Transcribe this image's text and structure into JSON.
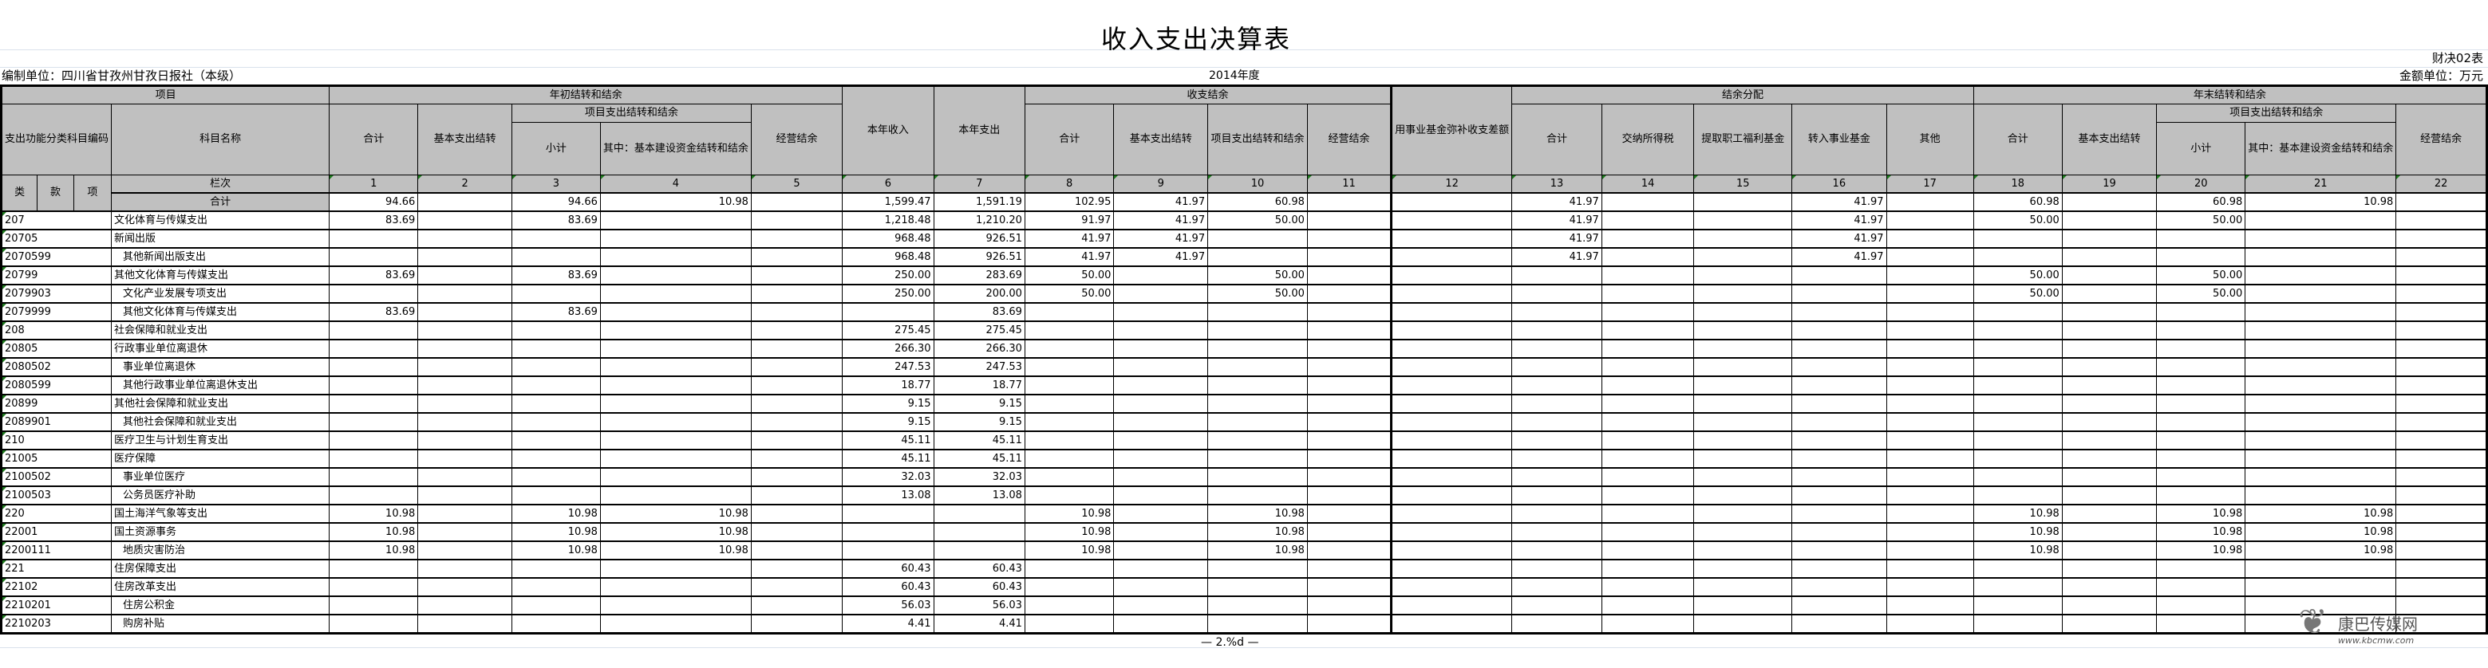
{
  "title": "收入支出决算表",
  "form_no": "财决02表",
  "unit": "编制单位：四川省甘孜州甘孜日报社（本级）",
  "year": "2014年度",
  "amount_unit": "金额单位：万元",
  "header": {
    "item": "项目",
    "begin_balance": "年初结转和结余",
    "income": "本年收入",
    "expense": "本年支出",
    "surplus": "收支结余",
    "fund_cover": "用事业基金弥补收支差额",
    "distribution": "结余分配",
    "end_balance": "年末结转和结余",
    "func_code": "支出功能分类科目编码",
    "subject_name": "科目名称",
    "total": "合计",
    "basic": "基本支出结转",
    "project": "项目支出结转和结余",
    "project_surplus": "项目支出结转和结余",
    "operating": "经营结余",
    "subtotal": "小计",
    "capital": "其中：基本建设资金结转和结余",
    "tax": "交纳所得税",
    "welfare": "提取职工福利基金",
    "to_fund": "转入事业基金",
    "other": "其他",
    "lei": "类",
    "kuan": "款",
    "xiang": "项",
    "col_index": "栏次",
    "col_numbers": [
      "1",
      "2",
      "3",
      "4",
      "5",
      "6",
      "7",
      "8",
      "9",
      "10",
      "11",
      "12",
      "13",
      "14",
      "15",
      "16",
      "17",
      "18",
      "19",
      "20",
      "21",
      "22"
    ],
    "total_row": "合计"
  },
  "total_values": [
    "94.66",
    "",
    "94.66",
    "10.98",
    "",
    "1,599.47",
    "1,591.19",
    "102.95",
    "41.97",
    "60.98",
    "",
    "",
    "41.97",
    "",
    "",
    "41.97",
    "",
    "60.98",
    "",
    "60.98",
    "10.98",
    ""
  ],
  "rows": [
    {
      "code": "207",
      "name": "文化体育与传媒支出",
      "indent": false,
      "values": [
        "83.69",
        "",
        "83.69",
        "",
        "",
        "1,218.48",
        "1,210.20",
        "91.97",
        "41.97",
        "50.00",
        "",
        "",
        "41.97",
        "",
        "",
        "41.97",
        "",
        "50.00",
        "",
        "50.00",
        "",
        ""
      ]
    },
    {
      "code": "20705",
      "name": "新闻出版",
      "indent": false,
      "values": [
        "",
        "",
        "",
        "",
        "",
        "968.48",
        "926.51",
        "41.97",
        "41.97",
        "",
        "",
        "",
        "41.97",
        "",
        "",
        "41.97",
        "",
        "",
        "",
        "",
        "",
        ""
      ]
    },
    {
      "code": "2070599",
      "name": "其他新闻出版支出",
      "indent": true,
      "values": [
        "",
        "",
        "",
        "",
        "",
        "968.48",
        "926.51",
        "41.97",
        "41.97",
        "",
        "",
        "",
        "41.97",
        "",
        "",
        "41.97",
        "",
        "",
        "",
        "",
        "",
        ""
      ]
    },
    {
      "code": "20799",
      "name": "其他文化体育与传媒支出",
      "indent": false,
      "values": [
        "83.69",
        "",
        "83.69",
        "",
        "",
        "250.00",
        "283.69",
        "50.00",
        "",
        "50.00",
        "",
        "",
        "",
        "",
        "",
        "",
        "",
        "50.00",
        "",
        "50.00",
        "",
        ""
      ]
    },
    {
      "code": "2079903",
      "name": "文化产业发展专项支出",
      "indent": true,
      "values": [
        "",
        "",
        "",
        "",
        "",
        "250.00",
        "200.00",
        "50.00",
        "",
        "50.00",
        "",
        "",
        "",
        "",
        "",
        "",
        "",
        "50.00",
        "",
        "50.00",
        "",
        ""
      ]
    },
    {
      "code": "2079999",
      "name": "其他文化体育与传媒支出",
      "indent": true,
      "values": [
        "83.69",
        "",
        "83.69",
        "",
        "",
        "",
        "83.69",
        "",
        "",
        "",
        "",
        "",
        "",
        "",
        "",
        "",
        "",
        "",
        "",
        "",
        "",
        ""
      ]
    },
    {
      "code": "208",
      "name": "社会保障和就业支出",
      "indent": false,
      "values": [
        "",
        "",
        "",
        "",
        "",
        "275.45",
        "275.45",
        "",
        "",
        "",
        "",
        "",
        "",
        "",
        "",
        "",
        "",
        "",
        "",
        "",
        "",
        ""
      ]
    },
    {
      "code": "20805",
      "name": "行政事业单位离退休",
      "indent": false,
      "values": [
        "",
        "",
        "",
        "",
        "",
        "266.30",
        "266.30",
        "",
        "",
        "",
        "",
        "",
        "",
        "",
        "",
        "",
        "",
        "",
        "",
        "",
        "",
        ""
      ]
    },
    {
      "code": "2080502",
      "name": "事业单位离退休",
      "indent": true,
      "values": [
        "",
        "",
        "",
        "",
        "",
        "247.53",
        "247.53",
        "",
        "",
        "",
        "",
        "",
        "",
        "",
        "",
        "",
        "",
        "",
        "",
        "",
        "",
        ""
      ]
    },
    {
      "code": "2080599",
      "name": "其他行政事业单位离退休支出",
      "indent": true,
      "values": [
        "",
        "",
        "",
        "",
        "",
        "18.77",
        "18.77",
        "",
        "",
        "",
        "",
        "",
        "",
        "",
        "",
        "",
        "",
        "",
        "",
        "",
        "",
        ""
      ]
    },
    {
      "code": "20899",
      "name": "其他社会保障和就业支出",
      "indent": false,
      "values": [
        "",
        "",
        "",
        "",
        "",
        "9.15",
        "9.15",
        "",
        "",
        "",
        "",
        "",
        "",
        "",
        "",
        "",
        "",
        "",
        "",
        "",
        "",
        ""
      ]
    },
    {
      "code": "2089901",
      "name": "其他社会保障和就业支出",
      "indent": true,
      "values": [
        "",
        "",
        "",
        "",
        "",
        "9.15",
        "9.15",
        "",
        "",
        "",
        "",
        "",
        "",
        "",
        "",
        "",
        "",
        "",
        "",
        "",
        "",
        ""
      ]
    },
    {
      "code": "210",
      "name": "医疗卫生与计划生育支出",
      "indent": false,
      "values": [
        "",
        "",
        "",
        "",
        "",
        "45.11",
        "45.11",
        "",
        "",
        "",
        "",
        "",
        "",
        "",
        "",
        "",
        "",
        "",
        "",
        "",
        "",
        ""
      ]
    },
    {
      "code": "21005",
      "name": "医疗保障",
      "indent": false,
      "values": [
        "",
        "",
        "",
        "",
        "",
        "45.11",
        "45.11",
        "",
        "",
        "",
        "",
        "",
        "",
        "",
        "",
        "",
        "",
        "",
        "",
        "",
        "",
        ""
      ]
    },
    {
      "code": "2100502",
      "name": "事业单位医疗",
      "indent": true,
      "values": [
        "",
        "",
        "",
        "",
        "",
        "32.03",
        "32.03",
        "",
        "",
        "",
        "",
        "",
        "",
        "",
        "",
        "",
        "",
        "",
        "",
        "",
        "",
        ""
      ]
    },
    {
      "code": "2100503",
      "name": "公务员医疗补助",
      "indent": true,
      "values": [
        "",
        "",
        "",
        "",
        "",
        "13.08",
        "13.08",
        "",
        "",
        "",
        "",
        "",
        "",
        "",
        "",
        "",
        "",
        "",
        "",
        "",
        "",
        ""
      ]
    },
    {
      "code": "220",
      "name": "国土海洋气象等支出",
      "indent": false,
      "values": [
        "10.98",
        "",
        "10.98",
        "10.98",
        "",
        "",
        "",
        "10.98",
        "",
        "10.98",
        "",
        "",
        "",
        "",
        "",
        "",
        "",
        "10.98",
        "",
        "10.98",
        "10.98",
        ""
      ]
    },
    {
      "code": "22001",
      "name": "国土资源事务",
      "indent": false,
      "values": [
        "10.98",
        "",
        "10.98",
        "10.98",
        "",
        "",
        "",
        "10.98",
        "",
        "10.98",
        "",
        "",
        "",
        "",
        "",
        "",
        "",
        "10.98",
        "",
        "10.98",
        "10.98",
        ""
      ]
    },
    {
      "code": "2200111",
      "name": "地质灾害防治",
      "indent": true,
      "values": [
        "10.98",
        "",
        "10.98",
        "10.98",
        "",
        "",
        "",
        "10.98",
        "",
        "10.98",
        "",
        "",
        "",
        "",
        "",
        "",
        "",
        "10.98",
        "",
        "10.98",
        "10.98",
        ""
      ]
    },
    {
      "code": "221",
      "name": "住房保障支出",
      "indent": false,
      "values": [
        "",
        "",
        "",
        "",
        "",
        "60.43",
        "60.43",
        "",
        "",
        "",
        "",
        "",
        "",
        "",
        "",
        "",
        "",
        "",
        "",
        "",
        "",
        ""
      ]
    },
    {
      "code": "22102",
      "name": "住房改革支出",
      "indent": false,
      "values": [
        "",
        "",
        "",
        "",
        "",
        "60.43",
        "60.43",
        "",
        "",
        "",
        "",
        "",
        "",
        "",
        "",
        "",
        "",
        "",
        "",
        "",
        "",
        ""
      ]
    },
    {
      "code": "2210201",
      "name": "住房公积金",
      "indent": true,
      "values": [
        "",
        "",
        "",
        "",
        "",
        "56.03",
        "56.03",
        "",
        "",
        "",
        "",
        "",
        "",
        "",
        "",
        "",
        "",
        "",
        "",
        "",
        "",
        ""
      ]
    },
    {
      "code": "2210203",
      "name": "购房补贴",
      "indent": true,
      "values": [
        "",
        "",
        "",
        "",
        "",
        "4.41",
        "4.41",
        "",
        "",
        "",
        "",
        "",
        "",
        "",
        "",
        "",
        "",
        "",
        "",
        "",
        "",
        ""
      ]
    }
  ],
  "footer": "— 2.%d —",
  "watermark": {
    "name": "康巴传媒网",
    "url": "www.kbcmw.com"
  },
  "colors": {
    "header_bg": "#c0c0c0",
    "border": "#000000",
    "marker": "#1e7b1e"
  }
}
